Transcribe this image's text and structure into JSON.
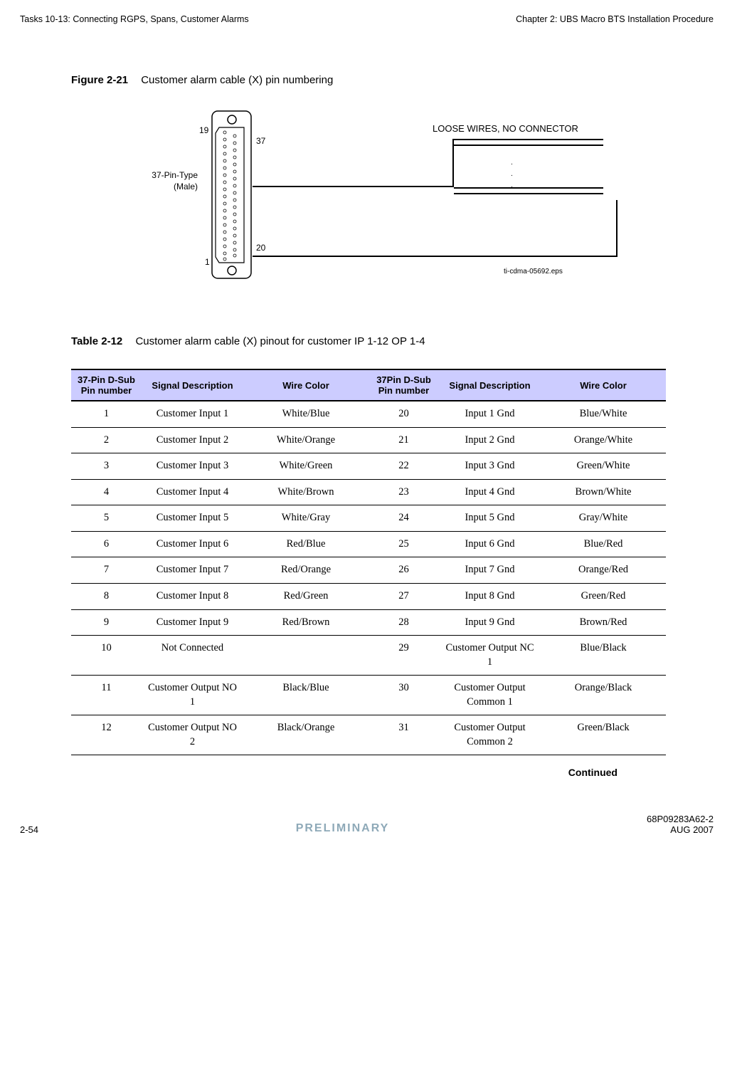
{
  "header": {
    "left": "Tasks 10-13: Connecting RGPS, Spans, Customer Alarms",
    "right": "Chapter 2: UBS Macro BTS Installation Procedure"
  },
  "figure": {
    "label": "Figure 2-21",
    "title": "Customer alarm cable (X) pin numbering",
    "pin19": "19",
    "pin37": "37",
    "pin20": "20",
    "pin1": "1",
    "pin_type_line1": "37-Pin-Type",
    "pin_type_line2": "(Male)",
    "loose_wires": "LOOSE WIRES, NO CONNECTOR",
    "eps_ref": "ti-cdma-05692.eps"
  },
  "table": {
    "label": "Table 2-12",
    "title": "Customer alarm cable (X) pinout for customer IP 1-12 OP 1-4",
    "headers": {
      "c1": "37-Pin D-Sub Pin number",
      "c2": "Signal Description",
      "c3": "Wire Color",
      "c4": "37Pin D-Sub Pin number",
      "c5": "Signal Description",
      "c6": "Wire Color"
    },
    "rows": [
      {
        "p1": "1",
        "s1": "Customer Input 1",
        "w1": "White/Blue",
        "p2": "20",
        "s2": "Input 1 Gnd",
        "w2": "Blue/White"
      },
      {
        "p1": "2",
        "s1": "Customer Input 2",
        "w1": "White/Orange",
        "p2": "21",
        "s2": "Input 2 Gnd",
        "w2": "Orange/White"
      },
      {
        "p1": "3",
        "s1": "Customer Input 3",
        "w1": "White/Green",
        "p2": "22",
        "s2": "Input 3 Gnd",
        "w2": "Green/White"
      },
      {
        "p1": "4",
        "s1": "Customer Input 4",
        "w1": "White/Brown",
        "p2": "23",
        "s2": "Input 4 Gnd",
        "w2": "Brown/White"
      },
      {
        "p1": "5",
        "s1": "Customer Input 5",
        "w1": "White/Gray",
        "p2": "24",
        "s2": "Input 5 Gnd",
        "w2": "Gray/White"
      },
      {
        "p1": "6",
        "s1": "Customer Input 6",
        "w1": "Red/Blue",
        "p2": "25",
        "s2": "Input 6 Gnd",
        "w2": "Blue/Red"
      },
      {
        "p1": "7",
        "s1": "Customer Input 7",
        "w1": "Red/Orange",
        "p2": "26",
        "s2": "Input 7 Gnd",
        "w2": "Orange/Red"
      },
      {
        "p1": "8",
        "s1": "Customer Input 8",
        "w1": "Red/Green",
        "p2": "27",
        "s2": "Input 8 Gnd",
        "w2": "Green/Red"
      },
      {
        "p1": "9",
        "s1": "Customer Input 9",
        "w1": "Red/Brown",
        "p2": "28",
        "s2": "Input 9 Gnd",
        "w2": "Brown/Red"
      },
      {
        "p1": "10",
        "s1": "Not Connected",
        "w1": "",
        "p2": "29",
        "s2": "Customer Output NC 1",
        "w2": "Blue/Black"
      },
      {
        "p1": "11",
        "s1": "Customer Output NO 1",
        "w1": "Black/Blue",
        "p2": "30",
        "s2": "Customer Output Common 1",
        "w2": "Orange/Black"
      },
      {
        "p1": "12",
        "s1": "Customer Output NO 2",
        "w1": "Black/Orange",
        "p2": "31",
        "s2": "Customer Output Common 2",
        "w2": "Green/Black"
      }
    ],
    "continued": "Continued"
  },
  "footer": {
    "page_no": "2-54",
    "preliminary": "PRELIMINARY",
    "doc_no": "68P09283A62-2",
    "date": "AUG 2007"
  }
}
